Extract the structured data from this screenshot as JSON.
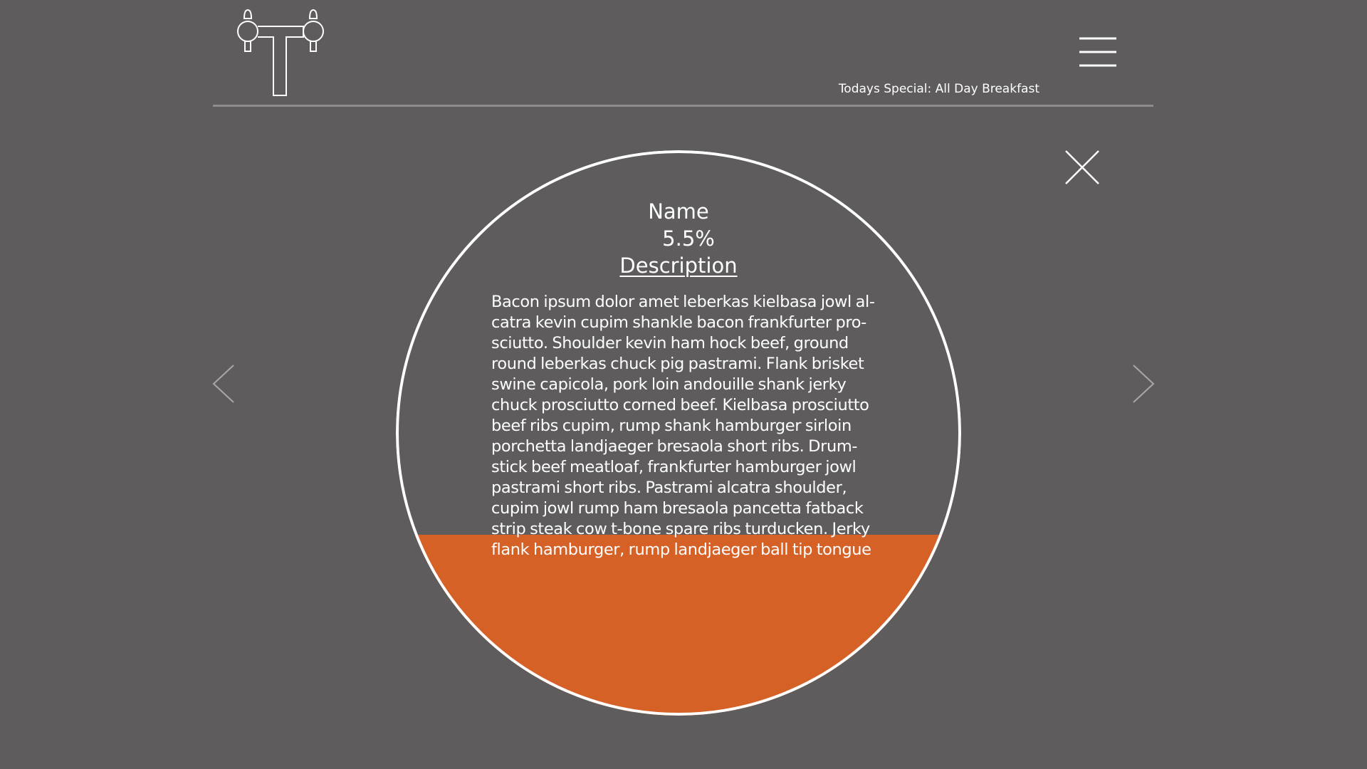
{
  "header": {
    "logo_icon": "tap-t-logo-icon",
    "menu_icon": "hamburger-menu-icon",
    "special_text": "Todays Special: All Day Breakfast"
  },
  "controls": {
    "close_icon": "close-icon",
    "prev_icon": "chevron-left-icon",
    "next_icon": "chevron-right-icon"
  },
  "beer": {
    "name": "Name",
    "abv": "5.5%",
    "description_heading": "Description",
    "description": "Bacon ipsum dolor amet leberkas kielbasa jowl al­catra kevin cupim shankle bacon frankfurter pro­sciutto. Shoulder kevin ham hock beef, ground round leberkas chuck pig pastrami. Flank brisket swine capicola, pork loin andouille shank jerky chuck prosciutto corned beef. Kielbasa prosciutto beef ribs cupim, rump shank hamburger sirloin porchetta landjaeger bresaola short ribs. Drum­stick beef meatloaf, frankfurter hamburger jowl pastrami short ribs. Pastrami alcatra shoulder, cupim jowl rump ham bresaola pancetta fatback strip steak cow t-bone spare ribs turducken. Jerky flank hamburger, rump landjaeger ball tip tongue",
    "fill_level": 0.32
  },
  "colors": {
    "background": "#5e5c5d",
    "fill": "#d66127",
    "line": "#ffffff",
    "rule": "#8e8c8d"
  }
}
